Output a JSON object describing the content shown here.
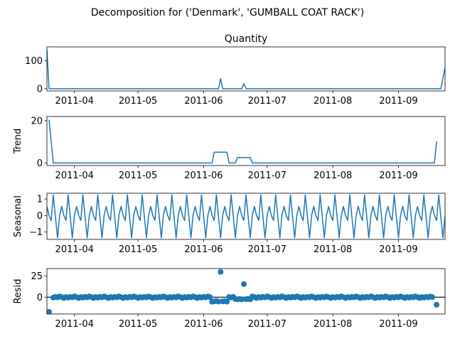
{
  "figure": {
    "suptitle": "Decomposition for ('Denmark', 'GUMBALL COAT RACK')",
    "line_color": "#1f77b4"
  },
  "chart_data": [
    {
      "type": "line",
      "title": "Quantity",
      "ylabel": "",
      "ylim": [
        -8,
        150
      ],
      "yticks": [
        0,
        100
      ],
      "xlim": [
        "2011-03-19",
        "2011-09-23"
      ],
      "xticks": [
        "2011-04",
        "2011-05",
        "2011-06",
        "2011-07",
        "2011-08",
        "2011-09"
      ],
      "series": [
        {
          "points": [
            [
              "2011-03-19",
              140
            ],
            [
              "2011-03-20",
              0
            ],
            [
              "2011-06-08",
              0
            ],
            [
              "2011-06-09",
              36
            ],
            [
              "2011-06-10",
              0
            ],
            [
              "2011-06-19",
              0
            ],
            [
              "2011-06-20",
              18
            ],
            [
              "2011-06-21",
              0
            ],
            [
              "2011-09-21",
              0
            ],
            [
              "2011-09-23",
              75
            ]
          ]
        }
      ]
    },
    {
      "type": "line",
      "title": "",
      "ylabel": "Trend",
      "ylim": [
        -1.2,
        22
      ],
      "yticks": [
        0,
        20
      ],
      "xlim": [
        "2011-03-19",
        "2011-09-23"
      ],
      "xticks": [
        "2011-04",
        "2011-05",
        "2011-06",
        "2011-07",
        "2011-08",
        "2011-09"
      ],
      "series": [
        {
          "points": [
            [
              "2011-03-20",
              20.5
            ],
            [
              "2011-03-22",
              0
            ],
            [
              "2011-06-05",
              0
            ],
            [
              "2011-06-06",
              5.1
            ],
            [
              "2011-06-12",
              5.1
            ],
            [
              "2011-06-13",
              0
            ],
            [
              "2011-06-16",
              0
            ],
            [
              "2011-06-17",
              2.6
            ],
            [
              "2011-06-23",
              2.6
            ],
            [
              "2011-06-24",
              0
            ],
            [
              "2011-09-18",
              0
            ],
            [
              "2011-09-19",
              10.2
            ]
          ]
        }
      ]
    },
    {
      "type": "line",
      "title": "",
      "ylabel": "Seasonal",
      "ylim": [
        -1.45,
        1.35
      ],
      "yticks": [
        -1,
        0,
        1
      ],
      "xlim": [
        "2011-03-19",
        "2011-09-23"
      ],
      "xticks": [
        "2011-04",
        "2011-05",
        "2011-06",
        "2011-07",
        "2011-08",
        "2011-09"
      ],
      "series": [
        {
          "start": "2011-03-19",
          "end": "2011-09-23",
          "period_values": [
            0.55,
            0.0,
            -0.3,
            1.25,
            -0.05,
            -1.35,
            0.0
          ]
        }
      ]
    },
    {
      "type": "scatter",
      "title": "",
      "ylabel": "Resid",
      "ylim": [
        -20,
        34
      ],
      "yticks": [
        0,
        25
      ],
      "hline": 0,
      "xlim": [
        "2011-03-19",
        "2011-09-23"
      ],
      "xticks": [
        "2011-04",
        "2011-05",
        "2011-06",
        "2011-07",
        "2011-08",
        "2011-09"
      ],
      "series": [
        {
          "start": "2011-03-22",
          "end": "2011-09-17",
          "base_pattern": [
            -0.5,
            0.3,
            -0.2,
            0.8,
            0.1,
            -1.0,
            0.2
          ],
          "outliers": [
            [
              "2011-03-20",
              -17.5
            ],
            [
              "2011-06-05",
              -5.5
            ],
            [
              "2011-06-06",
              -5.0
            ],
            [
              "2011-06-07",
              -4.5
            ],
            [
              "2011-06-08",
              -5.2
            ],
            [
              "2011-06-09",
              30.0
            ],
            [
              "2011-06-10",
              -5.0
            ],
            [
              "2011-06-11",
              -4.8
            ],
            [
              "2011-06-12",
              -5.3
            ],
            [
              "2011-06-16",
              -2.2
            ],
            [
              "2011-06-17",
              -2.5
            ],
            [
              "2011-06-18",
              -2.0
            ],
            [
              "2011-06-19",
              -2.6
            ],
            [
              "2011-06-20",
              15.5
            ],
            [
              "2011-06-21",
              -2.4
            ],
            [
              "2011-06-22",
              -2.1
            ],
            [
              "2011-06-23",
              -2.5
            ],
            [
              "2011-09-19",
              -9.0
            ]
          ]
        }
      ]
    }
  ]
}
